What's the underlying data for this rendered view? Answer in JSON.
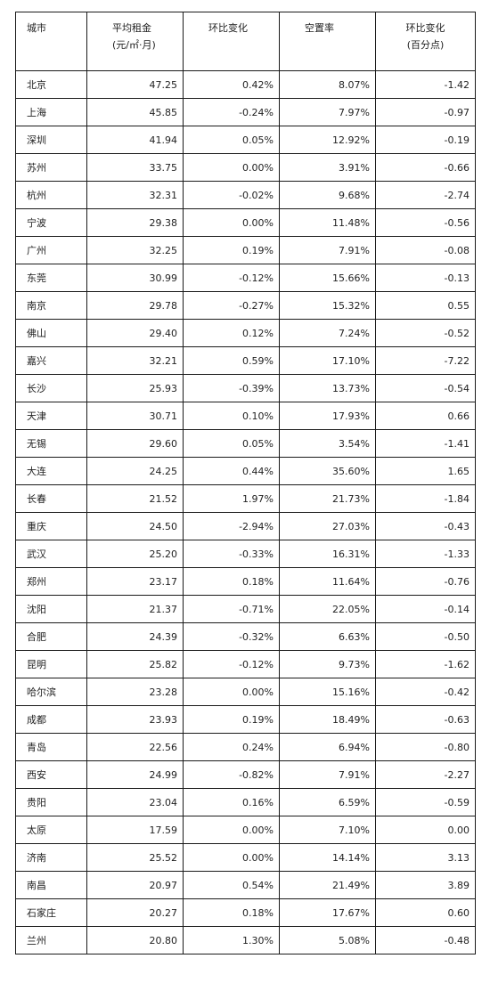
{
  "table": {
    "headers": {
      "city": "城市",
      "rent_line1": "平均租金",
      "rent_line2": "(元/㎡·月)",
      "rent_change": "环比变化",
      "vacancy": "空置率",
      "vacancy_change_line1": "环比变化",
      "vacancy_change_line2": "(百分点)"
    },
    "rows": [
      {
        "city": "北京",
        "rent": "47.25",
        "rent_change": "0.42%",
        "vacancy": "8.07%",
        "vacancy_change": "-1.42"
      },
      {
        "city": "上海",
        "rent": "45.85",
        "rent_change": "-0.24%",
        "vacancy": "7.97%",
        "vacancy_change": "-0.97"
      },
      {
        "city": "深圳",
        "rent": "41.94",
        "rent_change": "0.05%",
        "vacancy": "12.92%",
        "vacancy_change": "-0.19"
      },
      {
        "city": "苏州",
        "rent": "33.75",
        "rent_change": "0.00%",
        "vacancy": "3.91%",
        "vacancy_change": "-0.66"
      },
      {
        "city": "杭州",
        "rent": "32.31",
        "rent_change": "-0.02%",
        "vacancy": "9.68%",
        "vacancy_change": "-2.74"
      },
      {
        "city": "宁波",
        "rent": "29.38",
        "rent_change": "0.00%",
        "vacancy": "11.48%",
        "vacancy_change": "-0.56"
      },
      {
        "city": "广州",
        "rent": "32.25",
        "rent_change": "0.19%",
        "vacancy": "7.91%",
        "vacancy_change": "-0.08"
      },
      {
        "city": "东莞",
        "rent": "30.99",
        "rent_change": "-0.12%",
        "vacancy": "15.66%",
        "vacancy_change": "-0.13"
      },
      {
        "city": "南京",
        "rent": "29.78",
        "rent_change": "-0.27%",
        "vacancy": "15.32%",
        "vacancy_change": "0.55"
      },
      {
        "city": "佛山",
        "rent": "29.40",
        "rent_change": "0.12%",
        "vacancy": "7.24%",
        "vacancy_change": "-0.52"
      },
      {
        "city": "嘉兴",
        "rent": "32.21",
        "rent_change": "0.59%",
        "vacancy": "17.10%",
        "vacancy_change": "-7.22"
      },
      {
        "city": "长沙",
        "rent": "25.93",
        "rent_change": "-0.39%",
        "vacancy": "13.73%",
        "vacancy_change": "-0.54"
      },
      {
        "city": "天津",
        "rent": "30.71",
        "rent_change": "0.10%",
        "vacancy": "17.93%",
        "vacancy_change": "0.66"
      },
      {
        "city": "无锡",
        "rent": "29.60",
        "rent_change": "0.05%",
        "vacancy": "3.54%",
        "vacancy_change": "-1.41"
      },
      {
        "city": "大连",
        "rent": "24.25",
        "rent_change": "0.44%",
        "vacancy": "35.60%",
        "vacancy_change": "1.65"
      },
      {
        "city": "长春",
        "rent": "21.52",
        "rent_change": "1.97%",
        "vacancy": "21.73%",
        "vacancy_change": "-1.84"
      },
      {
        "city": "重庆",
        "rent": "24.50",
        "rent_change": "-2.94%",
        "vacancy": "27.03%",
        "vacancy_change": "-0.43"
      },
      {
        "city": "武汉",
        "rent": "25.20",
        "rent_change": "-0.33%",
        "vacancy": "16.31%",
        "vacancy_change": "-1.33"
      },
      {
        "city": "郑州",
        "rent": "23.17",
        "rent_change": "0.18%",
        "vacancy": "11.64%",
        "vacancy_change": "-0.76"
      },
      {
        "city": "沈阳",
        "rent": "21.37",
        "rent_change": "-0.71%",
        "vacancy": "22.05%",
        "vacancy_change": "-0.14"
      },
      {
        "city": "合肥",
        "rent": "24.39",
        "rent_change": "-0.32%",
        "vacancy": "6.63%",
        "vacancy_change": "-0.50"
      },
      {
        "city": "昆明",
        "rent": "25.82",
        "rent_change": "-0.12%",
        "vacancy": "9.73%",
        "vacancy_change": "-1.62"
      },
      {
        "city": "哈尔滨",
        "rent": "23.28",
        "rent_change": "0.00%",
        "vacancy": "15.16%",
        "vacancy_change": "-0.42"
      },
      {
        "city": "成都",
        "rent": "23.93",
        "rent_change": "0.19%",
        "vacancy": "18.49%",
        "vacancy_change": "-0.63"
      },
      {
        "city": "青岛",
        "rent": "22.56",
        "rent_change": "0.24%",
        "vacancy": "6.94%",
        "vacancy_change": "-0.80"
      },
      {
        "city": "西安",
        "rent": "24.99",
        "rent_change": "-0.82%",
        "vacancy": "7.91%",
        "vacancy_change": "-2.27"
      },
      {
        "city": "贵阳",
        "rent": "23.04",
        "rent_change": "0.16%",
        "vacancy": "6.59%",
        "vacancy_change": "-0.59"
      },
      {
        "city": "太原",
        "rent": "17.59",
        "rent_change": "0.00%",
        "vacancy": "7.10%",
        "vacancy_change": "0.00"
      },
      {
        "city": "济南",
        "rent": "25.52",
        "rent_change": "0.00%",
        "vacancy": "14.14%",
        "vacancy_change": "3.13"
      },
      {
        "city": "南昌",
        "rent": "20.97",
        "rent_change": "0.54%",
        "vacancy": "21.49%",
        "vacancy_change": "3.89"
      },
      {
        "city": "石家庄",
        "rent": "20.27",
        "rent_change": "0.18%",
        "vacancy": "17.67%",
        "vacancy_change": "0.60"
      },
      {
        "city": "兰州",
        "rent": "20.80",
        "rent_change": "1.30%",
        "vacancy": "5.08%",
        "vacancy_change": "-0.48"
      }
    ]
  }
}
